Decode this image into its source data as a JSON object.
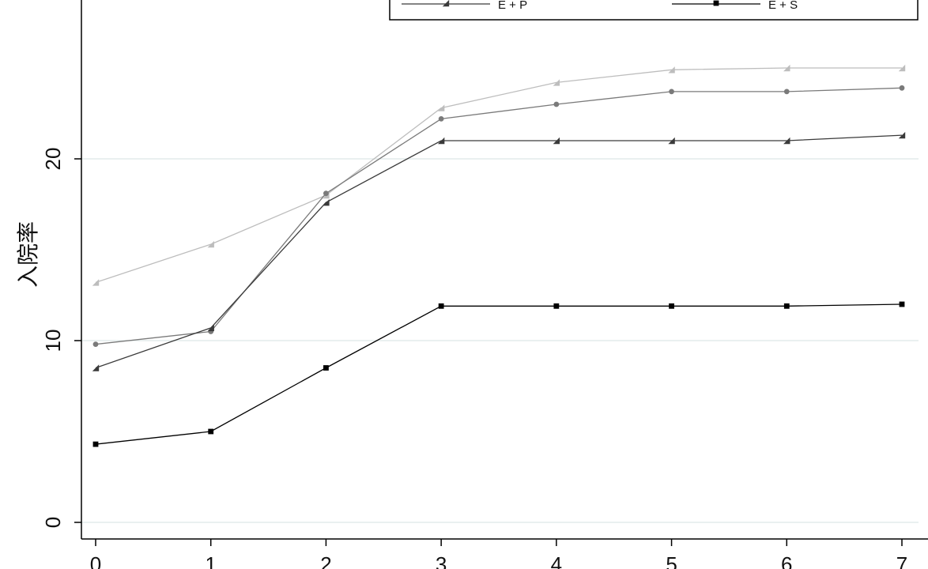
{
  "chart_data": {
    "type": "line",
    "xlabel": "",
    "ylabel": "入院率",
    "x": [
      0,
      1,
      2,
      3,
      4,
      5,
      6,
      7
    ],
    "xlim": [
      0,
      7
    ],
    "ylim": [
      0,
      28
    ],
    "yticks": [
      0,
      10,
      20
    ],
    "grid": true,
    "legend_placement": "top",
    "series": [
      {
        "color": "#bdbdbd",
        "marker": "triangle",
        "values": [
          13.2,
          15.3,
          18.0,
          22.8,
          24.2,
          24.9,
          25.0,
          25.0
        ]
      },
      {
        "color": "#7a7a7a",
        "marker": "circle",
        "values": [
          9.8,
          10.5,
          18.1,
          22.2,
          23.0,
          23.7,
          23.7,
          23.9
        ]
      },
      {
        "name": "E + P",
        "color": "#3a3a3a",
        "marker": "triangle",
        "values": [
          8.5,
          10.7,
          17.6,
          21.0,
          21.0,
          21.0,
          21.0,
          21.3
        ]
      },
      {
        "name": "E + S",
        "color": "#000000",
        "marker": "square",
        "values": [
          4.3,
          5.0,
          8.5,
          11.9,
          11.9,
          11.9,
          11.9,
          12.0
        ]
      }
    ]
  }
}
